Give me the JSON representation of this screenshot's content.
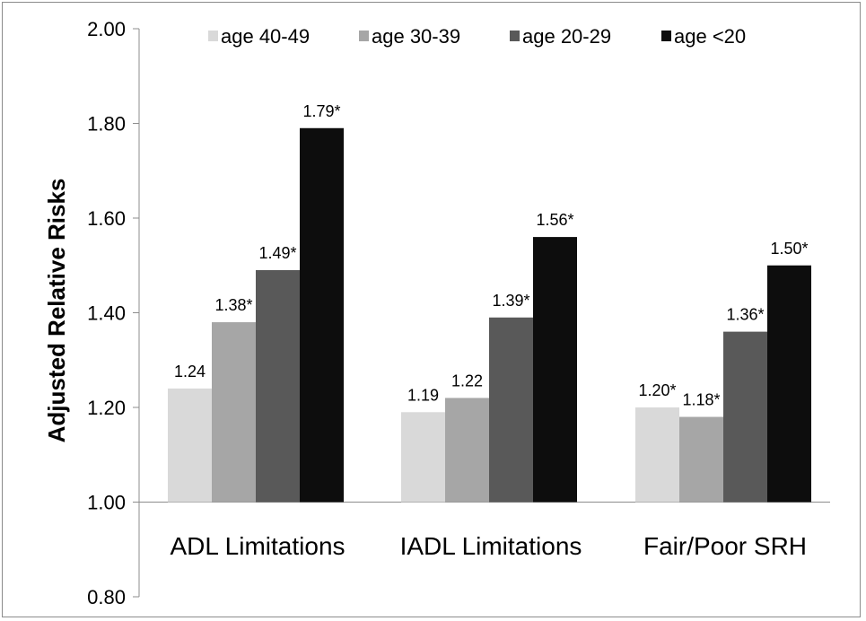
{
  "chart_data": {
    "type": "bar",
    "ylabel": "Adjusted Relative Risks",
    "ylim": [
      0.8,
      2.0
    ],
    "yticks": [
      "0.80",
      "1.00",
      "1.20",
      "1.40",
      "1.60",
      "1.80",
      "2.00"
    ],
    "grid": false,
    "legend_position": "top",
    "categories": [
      "ADL Limitations",
      "IADL Limitations",
      "Fair/Poor SRH"
    ],
    "series": [
      {
        "name": "age 40-49",
        "color": "#d9d9d9",
        "values": [
          1.24,
          1.19,
          1.2
        ],
        "labels": [
          "1.24",
          "1.19",
          "1.20*"
        ]
      },
      {
        "name": "age 30-39",
        "color": "#a6a6a6",
        "values": [
          1.38,
          1.22,
          1.18
        ],
        "labels": [
          "1.38*",
          "1.22",
          "1.18*"
        ]
      },
      {
        "name": "age 20-29",
        "color": "#595959",
        "values": [
          1.49,
          1.39,
          1.36
        ],
        "labels": [
          "1.49*",
          "1.39*",
          "1.36*"
        ]
      },
      {
        "name": "age <20",
        "color": "#0d0d0d",
        "values": [
          1.79,
          1.56,
          1.5
        ],
        "labels": [
          "1.79*",
          "1.56*",
          "1.50*"
        ]
      }
    ]
  }
}
